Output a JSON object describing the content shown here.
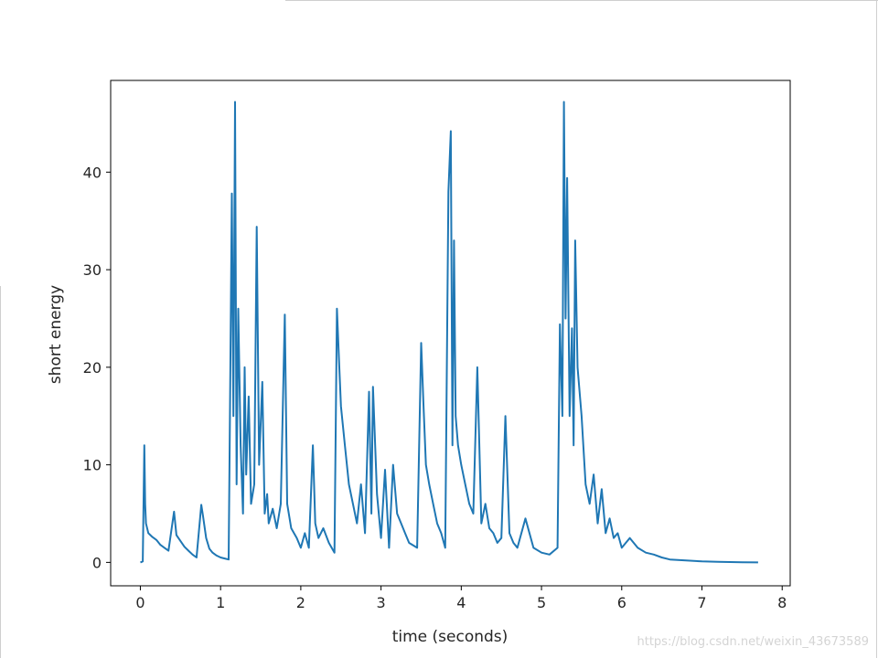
{
  "chart_data": {
    "type": "line",
    "title": "",
    "xlabel": "time (seconds)",
    "ylabel": "short energy",
    "xlim": [
      -0.37,
      8.1
    ],
    "ylim": [
      -2.4,
      49.4
    ],
    "xticks": [
      0,
      1,
      2,
      3,
      4,
      5,
      6,
      7,
      8
    ],
    "yticks": [
      0,
      10,
      20,
      30,
      40
    ],
    "grid": false,
    "legend": "none",
    "line_color": "#1f77b4",
    "series": [
      {
        "x": [
          0.0,
          0.03,
          0.05,
          0.06,
          0.07,
          0.1,
          0.15,
          0.2,
          0.25,
          0.3,
          0.35,
          0.42,
          0.45,
          0.5,
          0.55,
          0.6,
          0.65,
          0.7,
          0.76,
          0.78,
          0.82,
          0.86,
          0.9,
          0.95,
          1.0,
          1.05,
          1.1,
          1.12,
          1.14,
          1.16,
          1.18,
          1.2,
          1.22,
          1.25,
          1.28,
          1.3,
          1.32,
          1.35,
          1.38,
          1.42,
          1.45,
          1.48,
          1.52,
          1.55,
          1.58,
          1.6,
          1.65,
          1.7,
          1.75,
          1.8,
          1.83,
          1.88,
          1.95,
          2.0,
          2.05,
          2.1,
          2.15,
          2.18,
          2.22,
          2.28,
          2.35,
          2.42,
          2.45,
          2.48,
          2.5,
          2.55,
          2.6,
          2.65,
          2.7,
          2.75,
          2.8,
          2.85,
          2.88,
          2.9,
          2.95,
          3.0,
          3.05,
          3.1,
          3.15,
          3.2,
          3.25,
          3.3,
          3.35,
          3.45,
          3.5,
          3.53,
          3.56,
          3.6,
          3.65,
          3.7,
          3.75,
          3.8,
          3.84,
          3.87,
          3.89,
          3.91,
          3.93,
          3.96,
          4.0,
          4.05,
          4.1,
          4.15,
          4.2,
          4.25,
          4.3,
          4.35,
          4.4,
          4.45,
          4.5,
          4.55,
          4.6,
          4.65,
          4.7,
          4.8,
          4.9,
          5.0,
          5.1,
          5.2,
          5.23,
          5.26,
          5.28,
          5.3,
          5.32,
          5.35,
          5.38,
          5.4,
          5.42,
          5.45,
          5.5,
          5.55,
          5.6,
          5.65,
          5.7,
          5.75,
          5.8,
          5.85,
          5.9,
          5.95,
          6.0,
          6.1,
          6.2,
          6.3,
          6.4,
          6.5,
          6.6,
          6.8,
          7.0,
          7.2,
          7.5,
          7.7
        ],
        "values": [
          0.0,
          0.1,
          12.0,
          6.0,
          4.0,
          3.0,
          2.6,
          2.3,
          1.8,
          1.5,
          1.2,
          5.2,
          2.8,
          2.2,
          1.6,
          1.2,
          0.8,
          0.5,
          5.9,
          4.8,
          2.5,
          1.4,
          1.0,
          0.7,
          0.5,
          0.4,
          0.3,
          18.0,
          37.8,
          15.0,
          47.2,
          8.0,
          26.0,
          12.0,
          5.0,
          20.0,
          9.0,
          17.0,
          6.0,
          8.0,
          34.4,
          10.0,
          18.5,
          5.0,
          7.0,
          4.0,
          5.5,
          3.5,
          6.0,
          25.4,
          6.0,
          3.5,
          2.5,
          1.5,
          3.0,
          1.5,
          12.0,
          4.0,
          2.5,
          3.5,
          2.0,
          1.0,
          26.0,
          20.0,
          16.0,
          12.0,
          8.0,
          6.0,
          4.0,
          8.0,
          3.0,
          17.5,
          5.0,
          18.0,
          7.0,
          2.5,
          9.5,
          1.5,
          10.0,
          5.0,
          4.0,
          3.0,
          2.0,
          1.5,
          22.5,
          16.0,
          10.0,
          8.0,
          6.0,
          4.0,
          3.0,
          1.5,
          38.0,
          44.2,
          12.0,
          33.0,
          15.0,
          12.0,
          10.0,
          8.0,
          6.0,
          5.0,
          20.0,
          4.0,
          6.0,
          3.5,
          3.0,
          2.0,
          2.5,
          15.0,
          3.0,
          2.0,
          1.5,
          4.5,
          1.5,
          1.0,
          0.8,
          1.5,
          24.4,
          15.0,
          47.2,
          25.0,
          39.4,
          15.0,
          24.0,
          12.0,
          33.0,
          20.0,
          15.0,
          8.0,
          6.0,
          9.0,
          4.0,
          7.5,
          3.0,
          4.5,
          2.5,
          3.0,
          1.5,
          2.5,
          1.5,
          1.0,
          0.8,
          0.5,
          0.3,
          0.2,
          0.1,
          0.05,
          0.02,
          0.0
        ]
      }
    ]
  },
  "watermark": "https://blog.csdn.net/weixin_43673589"
}
